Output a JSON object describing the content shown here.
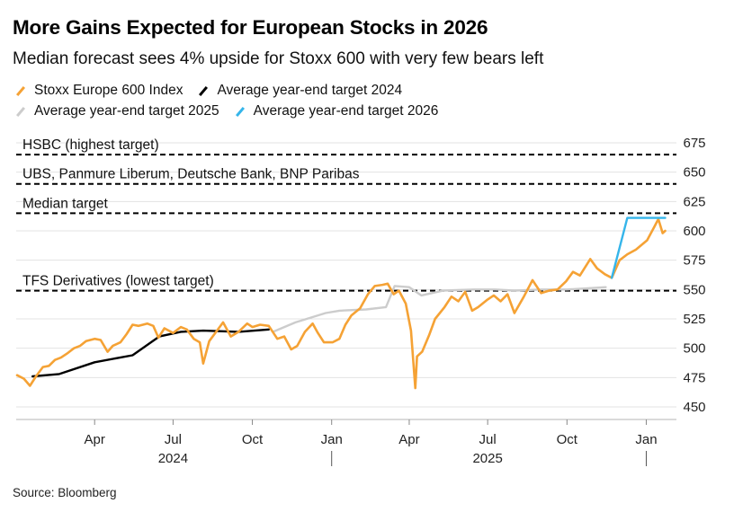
{
  "title": "More Gains Expected for European Stocks in 2026",
  "subtitle": "Median forecast sees 4% upside for Stoxx 600 with very few bears left",
  "source": "Source: Bloomberg",
  "legend": [
    {
      "label": "Stoxx Europe 600 Index",
      "color": "#f5a235"
    },
    {
      "label": "Average year-end target 2024",
      "color": "#000000"
    },
    {
      "label": "Average year-end target 2025",
      "color": "#cccccc"
    },
    {
      "label": "Average year-end target 2026",
      "color": "#35b5ea"
    }
  ],
  "chart_data": {
    "type": "line",
    "title": "More Gains Expected for European Stocks in 2026",
    "x_range": [
      "2024-01-01",
      "2026-02-05"
    ],
    "ylim": [
      450,
      675
    ],
    "y_ticks": [
      450,
      475,
      500,
      525,
      550,
      575,
      600,
      625,
      650,
      675
    ],
    "x_ticks": [
      {
        "date": "2024-04-01",
        "label": "Apr"
      },
      {
        "date": "2024-07-01",
        "label": "Jul"
      },
      {
        "date": "2024-10-01",
        "label": "Oct"
      },
      {
        "date": "2025-01-01",
        "label": "Jan"
      },
      {
        "date": "2025-04-01",
        "label": "Apr"
      },
      {
        "date": "2025-07-01",
        "label": "Jul"
      },
      {
        "date": "2025-10-01",
        "label": "Oct"
      },
      {
        "date": "2026-01-01",
        "label": "Jan"
      }
    ],
    "year_labels": [
      {
        "date": "2024-07-01",
        "label": "2024"
      },
      {
        "date": "2025-07-01",
        "label": "2025"
      }
    ],
    "year_dividers": [
      "2025-01-01",
      "2026-01-01"
    ],
    "reference_lines": [
      {
        "label": "HSBC (highest target)",
        "value": 665
      },
      {
        "label": "UBS, Panmure Liberum, Deutsche Bank, BNP Paribas",
        "value": 640
      },
      {
        "label": "Median target",
        "value": 615
      },
      {
        "label": "TFS Derivatives (lowest target)",
        "value": 549
      }
    ],
    "series": [
      {
        "name": "Stoxx Europe 600 Index",
        "color": "#f5a235",
        "points": [
          [
            "2024-01-02",
            477
          ],
          [
            "2024-01-10",
            474
          ],
          [
            "2024-01-17",
            468
          ],
          [
            "2024-01-24",
            476
          ],
          [
            "2024-02-01",
            484
          ],
          [
            "2024-02-08",
            485
          ],
          [
            "2024-02-15",
            490
          ],
          [
            "2024-02-22",
            492
          ],
          [
            "2024-03-01",
            496
          ],
          [
            "2024-03-08",
            500
          ],
          [
            "2024-03-15",
            502
          ],
          [
            "2024-03-22",
            506
          ],
          [
            "2024-04-01",
            508
          ],
          [
            "2024-04-08",
            507
          ],
          [
            "2024-04-16",
            497
          ],
          [
            "2024-04-22",
            502
          ],
          [
            "2024-05-01",
            505
          ],
          [
            "2024-05-08",
            512
          ],
          [
            "2024-05-15",
            520
          ],
          [
            "2024-05-22",
            519
          ],
          [
            "2024-06-01",
            521
          ],
          [
            "2024-06-08",
            519
          ],
          [
            "2024-06-14",
            509
          ],
          [
            "2024-06-21",
            517
          ],
          [
            "2024-07-01",
            513
          ],
          [
            "2024-07-10",
            518
          ],
          [
            "2024-07-17",
            516
          ],
          [
            "2024-07-25",
            508
          ],
          [
            "2024-08-01",
            505
          ],
          [
            "2024-08-05",
            487
          ],
          [
            "2024-08-12",
            506
          ],
          [
            "2024-08-20",
            514
          ],
          [
            "2024-08-28",
            522
          ],
          [
            "2024-09-06",
            510
          ],
          [
            "2024-09-15",
            514
          ],
          [
            "2024-09-25",
            521
          ],
          [
            "2024-10-01",
            518
          ],
          [
            "2024-10-10",
            520
          ],
          [
            "2024-10-20",
            519
          ],
          [
            "2024-10-30",
            508
          ],
          [
            "2024-11-07",
            510
          ],
          [
            "2024-11-15",
            499
          ],
          [
            "2024-11-22",
            502
          ],
          [
            "2024-12-01",
            514
          ],
          [
            "2024-12-10",
            521
          ],
          [
            "2024-12-16",
            513
          ],
          [
            "2024-12-23",
            505
          ],
          [
            "2025-01-02",
            505
          ],
          [
            "2025-01-10",
            508
          ],
          [
            "2025-01-17",
            520
          ],
          [
            "2025-01-24",
            528
          ],
          [
            "2025-02-03",
            534
          ],
          [
            "2025-02-12",
            546
          ],
          [
            "2025-02-20",
            553
          ],
          [
            "2025-03-01",
            554
          ],
          [
            "2025-03-07",
            555
          ],
          [
            "2025-03-14",
            546
          ],
          [
            "2025-03-20",
            549
          ],
          [
            "2025-03-28",
            538
          ],
          [
            "2025-04-03",
            515
          ],
          [
            "2025-04-08",
            466
          ],
          [
            "2025-04-10",
            493
          ],
          [
            "2025-04-16",
            497
          ],
          [
            "2025-04-24",
            511
          ],
          [
            "2025-05-01",
            525
          ],
          [
            "2025-05-12",
            535
          ],
          [
            "2025-05-20",
            544
          ],
          [
            "2025-05-28",
            540
          ],
          [
            "2025-06-05",
            548
          ],
          [
            "2025-06-13",
            532
          ],
          [
            "2025-06-20",
            535
          ],
          [
            "2025-06-30",
            541
          ],
          [
            "2025-07-08",
            545
          ],
          [
            "2025-07-16",
            540
          ],
          [
            "2025-07-24",
            546
          ],
          [
            "2025-08-01",
            530
          ],
          [
            "2025-08-12",
            544
          ],
          [
            "2025-08-22",
            558
          ],
          [
            "2025-09-01",
            547
          ],
          [
            "2025-09-10",
            549
          ],
          [
            "2025-09-20",
            550
          ],
          [
            "2025-09-30",
            557
          ],
          [
            "2025-10-08",
            565
          ],
          [
            "2025-10-16",
            562
          ],
          [
            "2025-10-28",
            576
          ],
          [
            "2025-11-05",
            568
          ],
          [
            "2025-11-14",
            563
          ],
          [
            "2025-11-22",
            560
          ],
          [
            "2025-12-01",
            575
          ],
          [
            "2025-12-10",
            580
          ],
          [
            "2025-12-20",
            584
          ],
          [
            "2026-01-02",
            592
          ],
          [
            "2026-01-10",
            603
          ],
          [
            "2026-01-15",
            610
          ],
          [
            "2026-01-20",
            598
          ],
          [
            "2026-01-23",
            600
          ]
        ]
      },
      {
        "name": "Average year-end target 2024",
        "color": "#000000",
        "points": [
          [
            "2024-01-20",
            476
          ],
          [
            "2024-02-20",
            478
          ],
          [
            "2024-04-01",
            488
          ],
          [
            "2024-05-15",
            494
          ],
          [
            "2024-06-15",
            510
          ],
          [
            "2024-07-10",
            514
          ],
          [
            "2024-08-05",
            515
          ],
          [
            "2024-09-15",
            514
          ],
          [
            "2024-10-20",
            516
          ]
        ]
      },
      {
        "name": "Average year-end target 2025",
        "color": "#cccccc",
        "points": [
          [
            "2024-10-25",
            514
          ],
          [
            "2024-11-20",
            522
          ],
          [
            "2024-12-25",
            530
          ],
          [
            "2025-01-10",
            532
          ],
          [
            "2025-02-10",
            533
          ],
          [
            "2025-03-05",
            535
          ],
          [
            "2025-03-15",
            553
          ],
          [
            "2025-04-01",
            552
          ],
          [
            "2025-04-15",
            545
          ],
          [
            "2025-05-10",
            549
          ],
          [
            "2025-06-15",
            550
          ],
          [
            "2025-07-10",
            550
          ],
          [
            "2025-08-01",
            549
          ],
          [
            "2025-09-01",
            550
          ],
          [
            "2025-10-01",
            550
          ],
          [
            "2025-11-15",
            552
          ]
        ]
      },
      {
        "name": "Average year-end target 2026",
        "color": "#35b5ea",
        "points": [
          [
            "2025-11-22",
            560
          ],
          [
            "2025-12-10",
            611
          ],
          [
            "2026-01-23",
            611
          ]
        ]
      }
    ]
  }
}
